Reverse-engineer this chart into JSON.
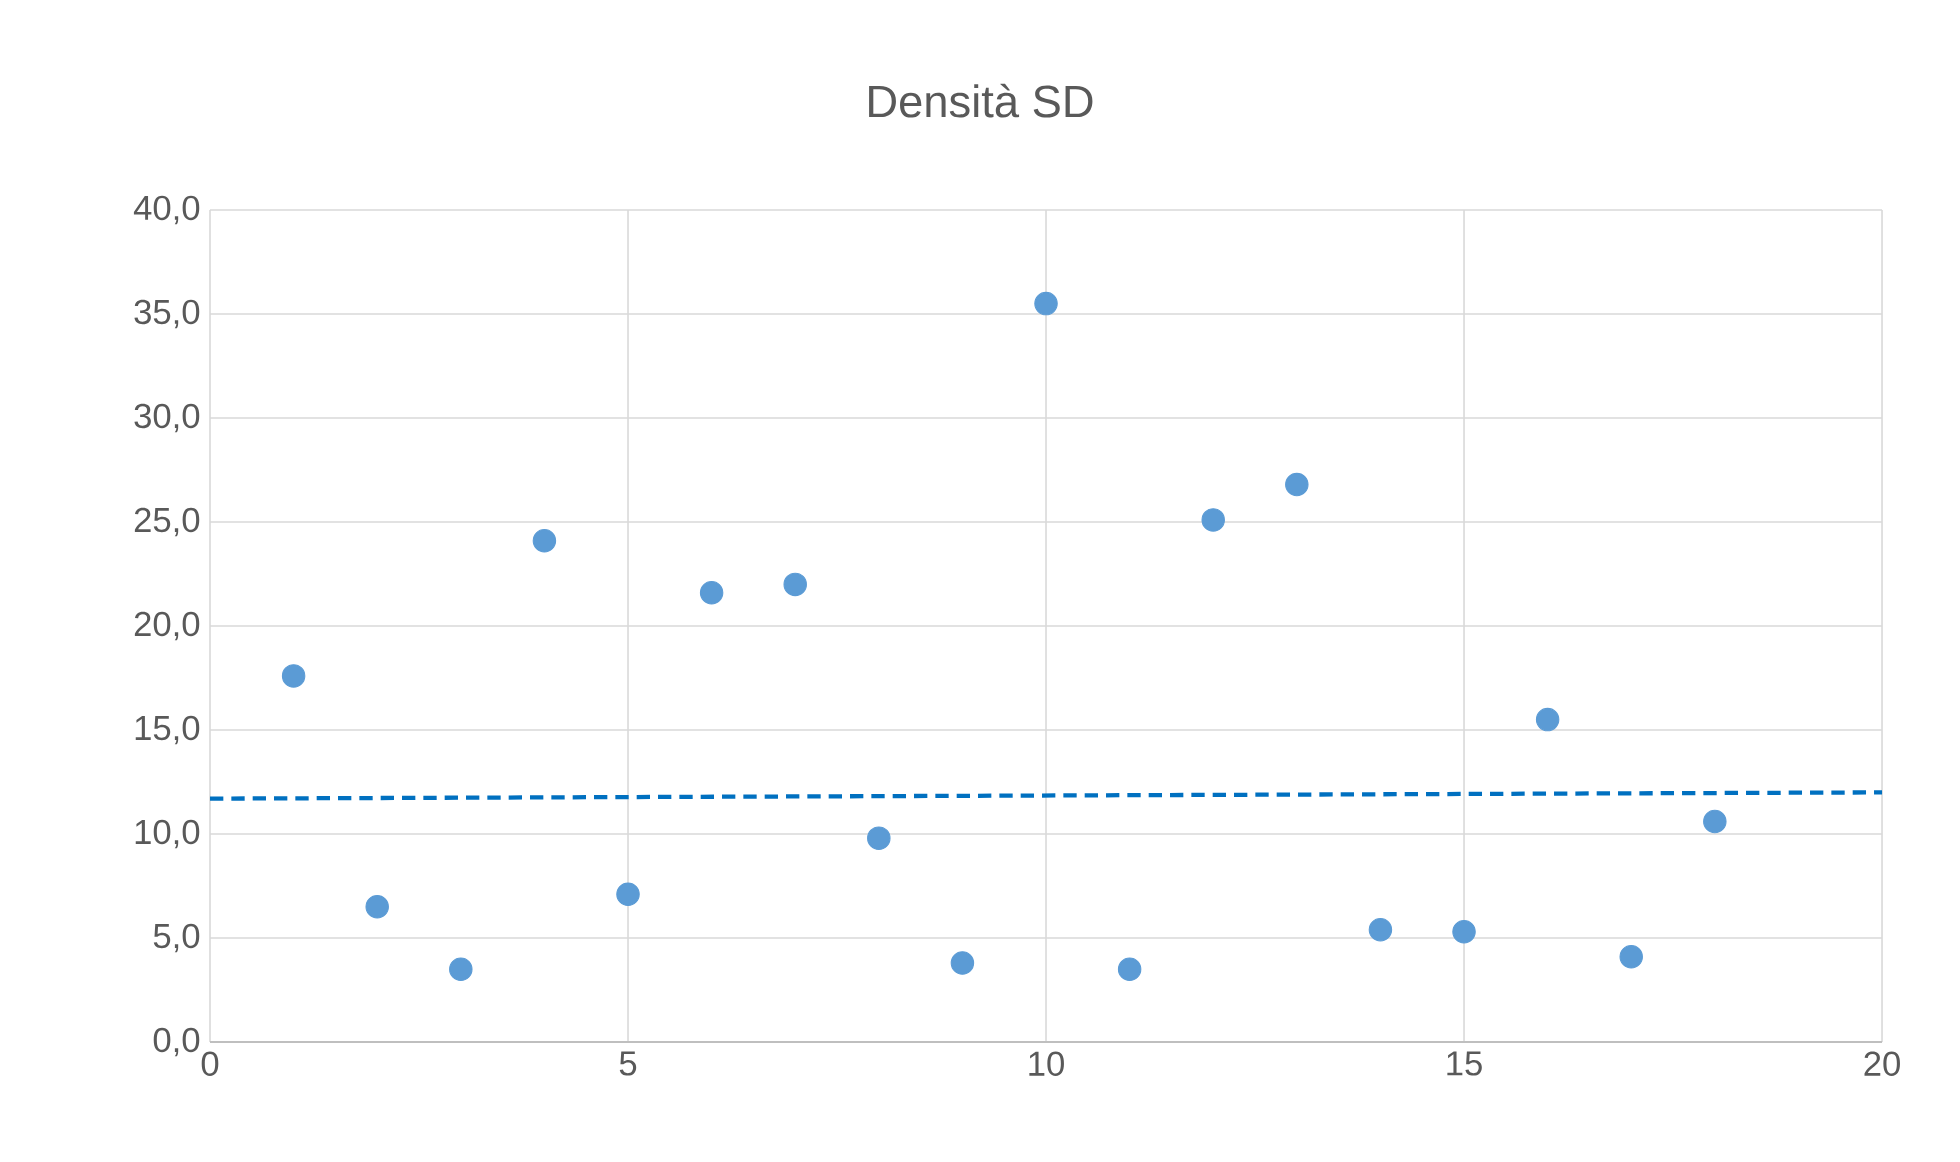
{
  "chart_data": {
    "type": "scatter",
    "title": "Densità SD",
    "xlim": [
      0,
      20
    ],
    "xticks": [
      0,
      5,
      10,
      15,
      20
    ],
    "ylim": [
      0,
      40
    ],
    "yticks": [
      {
        "value": 0,
        "label": "0,0"
      },
      {
        "value": 5,
        "label": "5,0"
      },
      {
        "value": 10,
        "label": "10,0"
      },
      {
        "value": 15,
        "label": "15,0"
      },
      {
        "value": 20,
        "label": "20,0"
      },
      {
        "value": 25,
        "label": "25,0"
      },
      {
        "value": 30,
        "label": "30,0"
      },
      {
        "value": 35,
        "label": "35,0"
      },
      {
        "value": 40,
        "label": "40,0"
      }
    ],
    "grid": true,
    "marker": "circle",
    "series": [
      {
        "color": "#5b9bd5",
        "x": [
          1,
          2,
          3,
          4,
          5,
          6,
          7,
          8,
          9,
          10,
          11,
          12,
          13,
          14,
          15,
          16,
          17,
          18
        ],
        "values": [
          17.6,
          6.5,
          3.5,
          24.1,
          7.1,
          21.6,
          22.0,
          9.8,
          3.8,
          35.5,
          3.5,
          25.1,
          26.8,
          5.4,
          5.3,
          15.5,
          4.1,
          10.6
        ]
      },
      {
        "type": "line",
        "color": "#0070c0",
        "x": [
          0,
          20
        ],
        "values": [
          11.7,
          12.0
        ],
        "line_style": "dashed",
        "marker": "none"
      }
    ]
  }
}
